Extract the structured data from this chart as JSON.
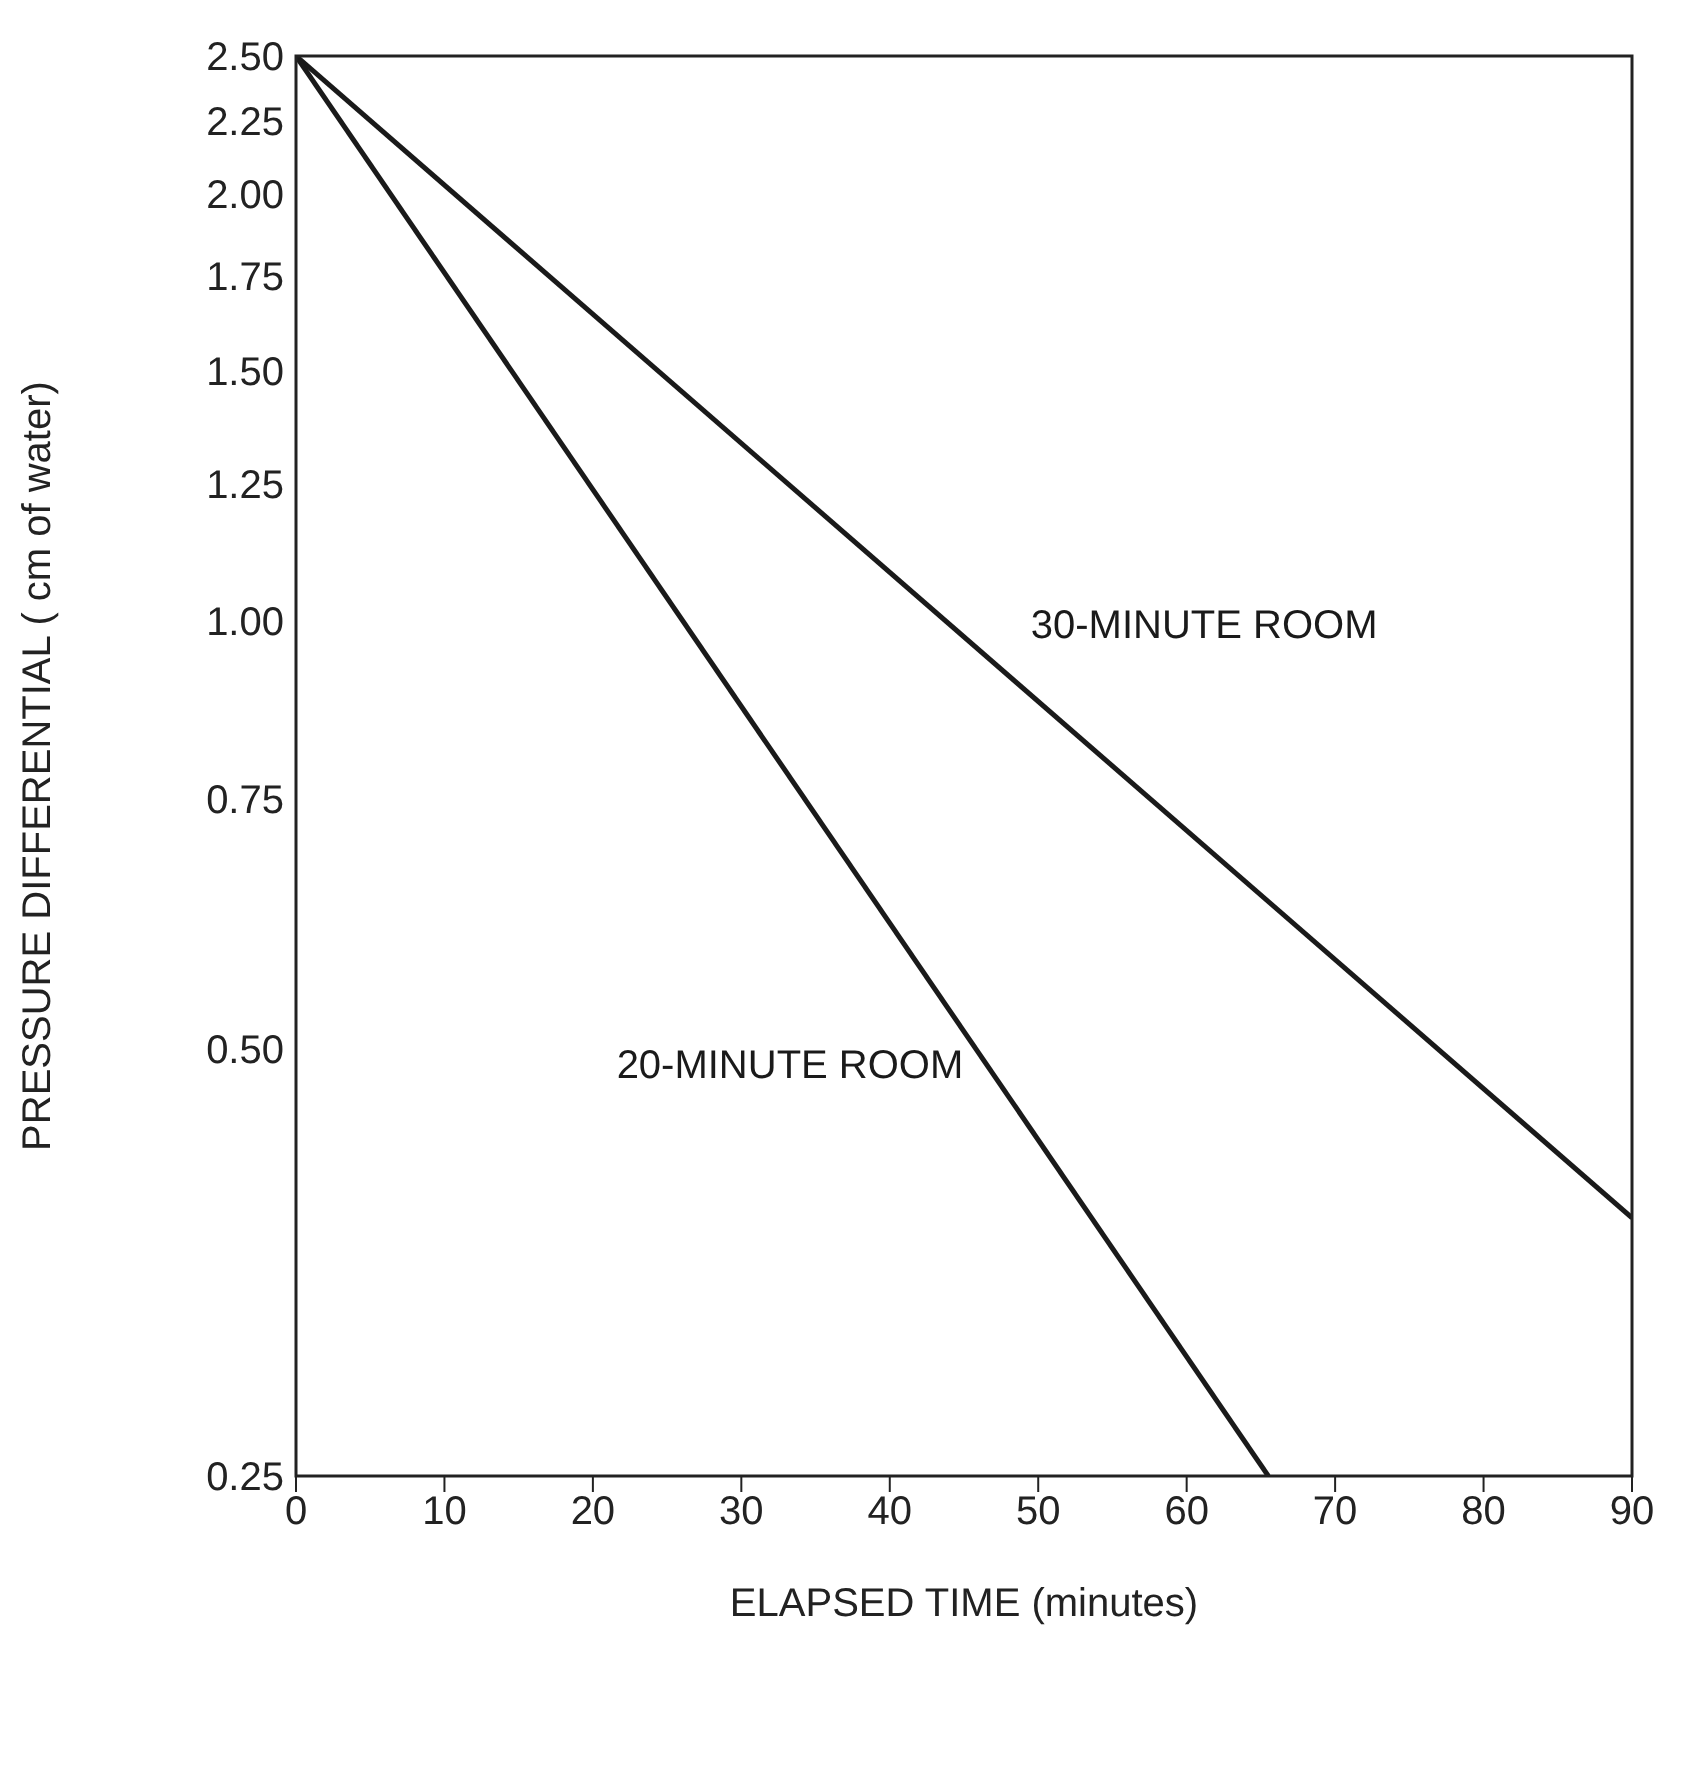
{
  "chart_data": {
    "type": "line",
    "xlabel": "ELAPSED TIME (minutes)",
    "ylabel": "PRESSURE DIFFERENTIAL ( cm of water)",
    "series": [
      {
        "name": "30-MINUTE ROOM",
        "color": "#1a1a1a",
        "x": [
          0,
          90
        ],
        "values": [
          2.5,
          0.38
        ]
      },
      {
        "name": "20-MINUTE ROOM",
        "color": "#1a1a1a",
        "x": [
          0,
          65.5
        ],
        "values": [
          2.5,
          0.25
        ]
      }
    ],
    "xlim": [
      0,
      90
    ],
    "xticks": [
      0,
      10,
      20,
      30,
      40,
      50,
      60,
      70,
      80,
      90
    ],
    "ylim": [
      0.25,
      2.5
    ],
    "yticks": [
      {
        "value": 0.25,
        "label": "0.25"
      },
      {
        "value": 0.5,
        "label": "0.50"
      },
      {
        "value": 0.75,
        "label": "0.75"
      },
      {
        "value": 1,
        "label": "1.00"
      },
      {
        "value": 1.25,
        "label": "1.25"
      },
      {
        "value": 1.5,
        "label": "1.50"
      },
      {
        "value": 1.75,
        "label": "1.75"
      },
      {
        "value": 2,
        "label": "2.00"
      },
      {
        "value": 2.25,
        "label": "2.25"
      },
      {
        "value": 2.5,
        "label": "2.50"
      }
    ],
    "log": "y",
    "grid": false,
    "legend": false,
    "marker": "none",
    "line_style": "solid"
  }
}
